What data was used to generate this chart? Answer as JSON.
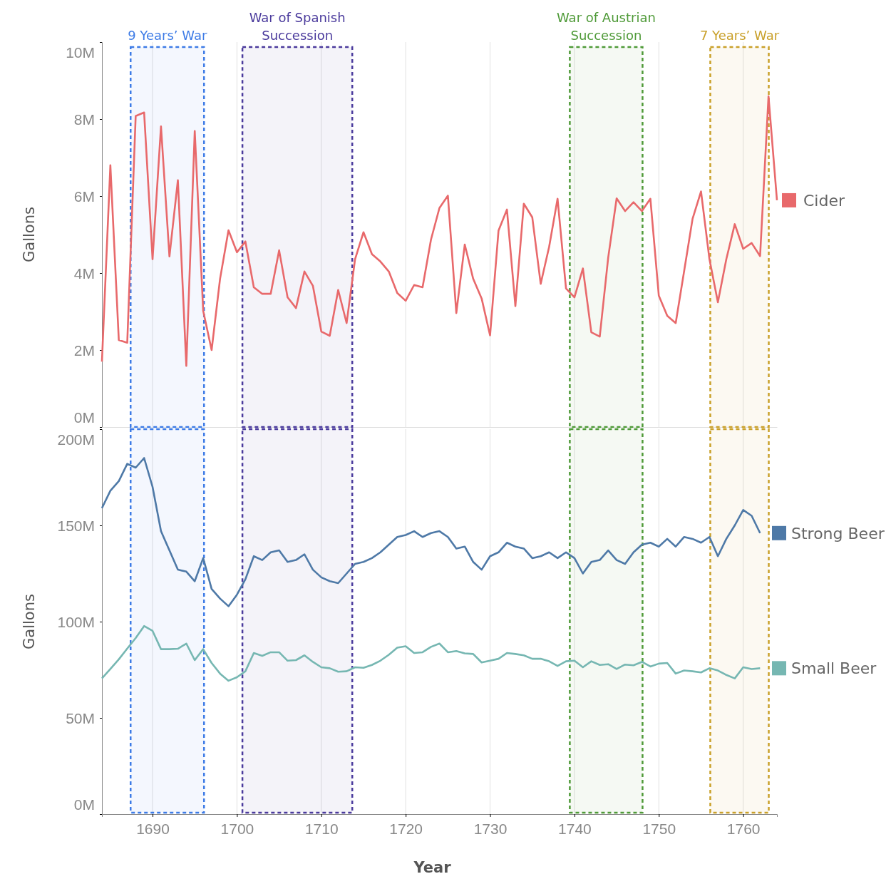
{
  "chart_data": [
    {
      "type": "line",
      "ylabel": "Gallons",
      "xlim": [
        1684,
        1764
      ],
      "xticks": [
        1690,
        1700,
        1710,
        1720,
        1730,
        1740,
        1750,
        1760
      ],
      "ylim": [
        0,
        10
      ],
      "yticks": [
        {
          "value": 0,
          "label": "0M"
        },
        {
          "value": 2,
          "label": "2M"
        },
        {
          "value": 4,
          "label": "4M"
        },
        {
          "value": 6,
          "label": "6M"
        },
        {
          "value": 8,
          "label": "8M"
        },
        {
          "value": 10,
          "label": "10M"
        }
      ],
      "tick_labels": "y",
      "grid": "x",
      "legend": "right",
      "line_style": "solid",
      "x": [
        1684,
        1685,
        1686,
        1687,
        1688,
        1689,
        1690,
        1691,
        1692,
        1693,
        1694,
        1695,
        1696,
        1697,
        1698,
        1699,
        1700,
        1701,
        1702,
        1703,
        1704,
        1705,
        1706,
        1707,
        1708,
        1709,
        1710,
        1711,
        1712,
        1713,
        1714,
        1715,
        1716,
        1717,
        1718,
        1719,
        1720,
        1721,
        1722,
        1723,
        1724,
        1725,
        1726,
        1727,
        1728,
        1729,
        1730,
        1731,
        1732,
        1733,
        1734,
        1735,
        1736,
        1737,
        1738,
        1739,
        1740,
        1741,
        1742,
        1743,
        1744,
        1745,
        1746,
        1747,
        1748,
        1749,
        1750,
        1751,
        1752,
        1753,
        1754,
        1755,
        1756,
        1757,
        1758,
        1759,
        1760,
        1761,
        1762,
        1763,
        1764
      ],
      "series": [
        {
          "name": "Cider",
          "color": "#e8696b",
          "values": [
            1.7,
            6.8,
            2.26,
            2.19,
            8.08,
            8.17,
            4.36,
            7.81,
            4.43,
            6.41,
            1.59,
            7.69,
            3.02,
            2.0,
            3.85,
            5.11,
            4.54,
            4.82,
            3.63,
            3.46,
            3.46,
            4.59,
            3.37,
            3.09,
            4.04,
            3.67,
            2.48,
            2.37,
            3.56,
            2.7,
            4.36,
            5.06,
            4.49,
            4.3,
            4.04,
            3.48,
            3.28,
            3.69,
            3.63,
            4.87,
            5.69,
            6.01,
            2.96,
            4.74,
            3.85,
            3.34,
            2.38,
            5.1,
            5.65,
            3.14,
            5.8,
            5.45,
            3.72,
            4.68,
            5.93,
            3.6,
            3.37,
            4.12,
            2.46,
            2.35,
            4.4,
            5.94,
            5.61,
            5.84,
            5.61,
            5.93,
            3.41,
            2.89,
            2.7,
            4.05,
            5.41,
            6.12,
            4.36,
            3.24,
            4.36,
            5.27,
            4.63,
            4.78,
            4.44,
            8.59,
            5.89
          ]
        }
      ],
      "bands": [
        {
          "axis": "x",
          "from": 1687.4,
          "to": 1696.1,
          "label": "9 Years’ War",
          "color": "#3d7be6"
        },
        {
          "axis": "x",
          "from": 1700.65,
          "to": 1713.67,
          "label": "War of Spanish Succession",
          "color": "#4a3a9c"
        },
        {
          "axis": "x",
          "from": 1739.45,
          "to": 1748.07,
          "label": "War of Austrian Succession",
          "color": "#4f9a38"
        },
        {
          "axis": "x",
          "from": 1756.1,
          "to": 1763.03,
          "label": "7 Years’ War",
          "color": "#c9a02a"
        }
      ]
    },
    {
      "type": "line",
      "ylabel": "Gallons",
      "xlabel": "Year",
      "xlim": [
        1684,
        1764
      ],
      "xticks": [
        1690,
        1700,
        1710,
        1720,
        1730,
        1740,
        1750,
        1760
      ],
      "ylim": [
        0,
        200
      ],
      "yticks": [
        {
          "value": 0,
          "label": "0M"
        },
        {
          "value": 50,
          "label": "50M"
        },
        {
          "value": 100,
          "label": "100M"
        },
        {
          "value": 150,
          "label": "150M"
        },
        {
          "value": 200,
          "label": "200M"
        }
      ],
      "grid": "x",
      "legend": "right",
      "line_style": "solid",
      "x": [
        1684,
        1685,
        1686,
        1687,
        1688,
        1689,
        1690,
        1691,
        1692,
        1693,
        1694,
        1695,
        1696,
        1697,
        1698,
        1699,
        1700,
        1701,
        1702,
        1703,
        1704,
        1705,
        1706,
        1707,
        1708,
        1709,
        1710,
        1711,
        1712,
        1713,
        1714,
        1715,
        1716,
        1717,
        1718,
        1719,
        1720,
        1721,
        1722,
        1723,
        1724,
        1725,
        1726,
        1727,
        1728,
        1729,
        1730,
        1731,
        1732,
        1733,
        1734,
        1735,
        1736,
        1737,
        1738,
        1739,
        1740,
        1741,
        1742,
        1743,
        1744,
        1745,
        1746,
        1747,
        1748,
        1749,
        1750,
        1751,
        1752,
        1753,
        1754,
        1755,
        1756,
        1757,
        1758,
        1759,
        1760,
        1761,
        1762
      ],
      "series": [
        {
          "name": "Strong Beer",
          "color": "#4e79a7",
          "values": [
            159,
            168,
            173,
            182,
            180,
            185,
            170,
            147,
            137,
            127,
            126,
            121,
            133,
            117,
            112,
            108,
            114,
            122,
            134,
            132,
            136,
            137,
            131,
            132,
            135,
            127,
            123,
            121,
            120,
            125,
            130,
            131,
            133,
            136,
            140,
            144,
            145,
            147,
            144,
            146,
            147,
            144,
            138,
            139,
            131,
            127,
            134,
            136,
            141,
            139,
            138,
            133,
            134,
            136,
            133,
            136,
            133,
            125,
            131,
            132,
            137,
            132,
            130,
            136,
            140,
            141,
            139,
            143,
            139,
            144,
            143,
            141,
            144,
            134,
            143,
            150,
            158,
            155,
            146
          ]
        },
        {
          "name": "Small Beer",
          "color": "#76b7b2",
          "values": [
            70.5,
            75.4,
            80.4,
            86,
            91.5,
            97.7,
            95.2,
            85.7,
            85.7,
            85.9,
            88.6,
            80,
            85.7,
            78.5,
            73,
            69.3,
            71.1,
            74.2,
            83.7,
            82.2,
            84.1,
            84.1,
            79.7,
            80,
            82.5,
            79.1,
            76.3,
            75.8,
            74,
            74.2,
            76.3,
            76,
            77.5,
            79.7,
            82.8,
            86.5,
            87.2,
            83.7,
            84.1,
            86.9,
            88.6,
            84.1,
            84.7,
            83.5,
            83.2,
            78.8,
            79.7,
            80.7,
            83.7,
            83.2,
            82.5,
            80.7,
            80.7,
            79.4,
            77,
            79.4,
            79.7,
            76.3,
            79.4,
            77.5,
            77.9,
            75.4,
            77.7,
            77.3,
            79.1,
            76.7,
            78.2,
            78.5,
            73,
            74.6,
            74.2,
            73.6,
            75.8,
            74.6,
            72.3,
            70.5,
            76.3,
            75.4,
            75.8
          ]
        }
      ],
      "bands": [
        {
          "axis": "x",
          "from": 1687.4,
          "to": 1696.1,
          "color": "#3d7be6"
        },
        {
          "axis": "x",
          "from": 1700.65,
          "to": 1713.67,
          "color": "#4a3a9c"
        },
        {
          "axis": "x",
          "from": 1739.45,
          "to": 1748.07,
          "color": "#4f9a38"
        },
        {
          "axis": "x",
          "from": 1756.1,
          "to": 1763.03,
          "color": "#c9a02a"
        }
      ]
    }
  ]
}
